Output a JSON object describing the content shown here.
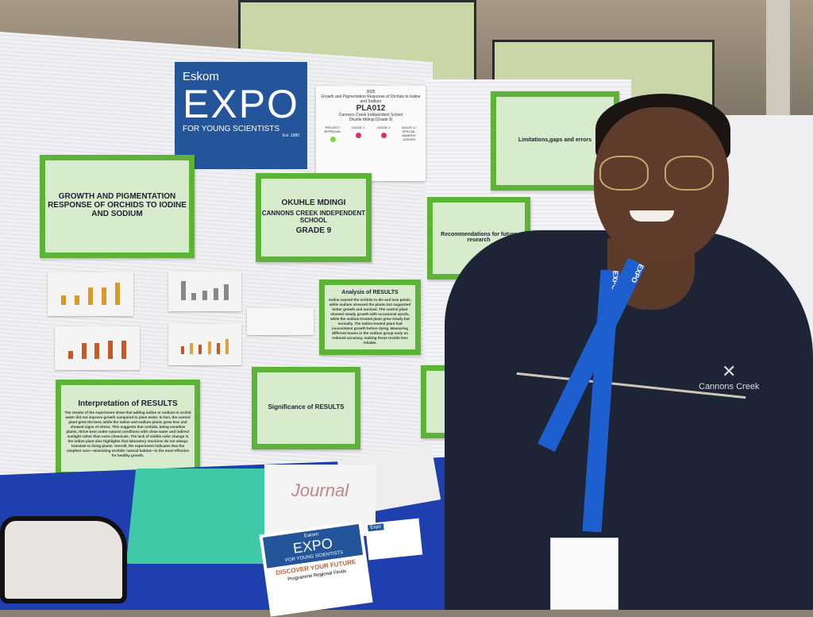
{
  "logo": {
    "brand": "Eskom",
    "title": "EXPO",
    "subtitle": "FOR YOUNG SCIENTISTS",
    "est": "Est. 1980"
  },
  "entry_sheet": {
    "year": "2025",
    "project": "Growth and Pigmentation Response of Orchids to Iodine and Sodium",
    "code": "PLA012",
    "school": "Cannons Creek Independent School",
    "student": "Okuhle Mdingi (Grade 9)",
    "columns": [
      "PROJECT APPROVAL",
      "JUDGE 1",
      "JUDGE 2",
      "JUDGE 3 / SPECIAL AWARDS JUDGES"
    ],
    "dot_colors": [
      "#7fd93a",
      "#e0306a",
      "#e0306a"
    ]
  },
  "posters": {
    "title": "GROWTH AND PIGMENTATION RESPONSE OF ORCHIDS TO IODINE AND SODIUM",
    "student_name": "OKUHLE MDINGI",
    "school": "CANNONS CREEK INDEPENDENT SCHOOL",
    "grade": "GRADE 9",
    "analysis_title": "Analysis of RESULTS",
    "analysis_text": "Iodine caused the orchids to die and lose petals, while sodium stressed the plants but supported better growth and survival. The control plant showed steady growth with occasional spurts, while the sodium-treated plant grew slowly but normally. The iodine-treated plant had inconsistent growth before dying. Measuring different leaves in the sodium group early on reduced accuracy, making those results less reliable.",
    "interpretation_title": "Interpretation of RESULTS",
    "interpretation_text": "The results of the experiment show that adding iodine or sodium to orchid water did not improve growth compared to plain water. In fact, the control plant grew the best, while the iodine and sodium plants grew less and showed signs of stress. This suggests that orchids, being sensitive plants, thrive best under natural conditions with clean water and indirect sunlight rather than extra chemicals. The lack of visible color change in the iodine plant also highlights that laboratory reactions do not always translate to living plants. Overall, the experiment indicates that the simplest care—mimicking orchids' natural habitat—is the most effective for healthy growth.",
    "significance_title": "Significance of RESULTS",
    "limitations_title": "Limitations,gaps and errors",
    "recommendations_title": "Recommendations for future research"
  },
  "table": {
    "journal": "Journal",
    "brochure": {
      "brand": "Eskom",
      "title": "EXPO",
      "subtitle": "FOR YOUNG SCIENTISTS",
      "tagline": "DISCOVER YOUR FUTURE",
      "caption": "Programme Regional Finals"
    },
    "card_logo": "Expo"
  },
  "person": {
    "lanyard_text": "EXPO",
    "jacket_text": "Cannons Creek"
  },
  "colors": {
    "poster_green": "#5cb338",
    "expo_blue": "#24549a",
    "tablecloth": "#1f3fae",
    "jacket": "#1d2436"
  }
}
